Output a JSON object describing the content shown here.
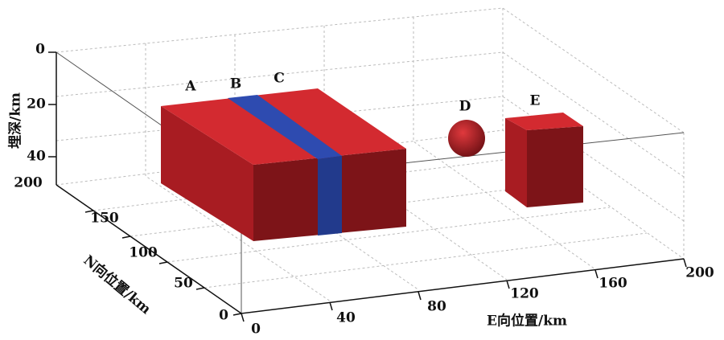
{
  "axes": {
    "depth": {
      "label": "埋深/km",
      "ticks": [
        "0",
        "20",
        "40"
      ]
    },
    "north": {
      "label": "N向位置/km",
      "ticks": [
        "0",
        "50",
        "100",
        "150",
        "200"
      ]
    },
    "east": {
      "label": "E向位置/km",
      "ticks": [
        "0",
        "40",
        "80",
        "120",
        "160",
        "200"
      ]
    }
  },
  "bodies": [
    {
      "label": "A"
    },
    {
      "label": "B"
    },
    {
      "label": "C"
    },
    {
      "label": "D"
    },
    {
      "label": "E"
    }
  ]
}
